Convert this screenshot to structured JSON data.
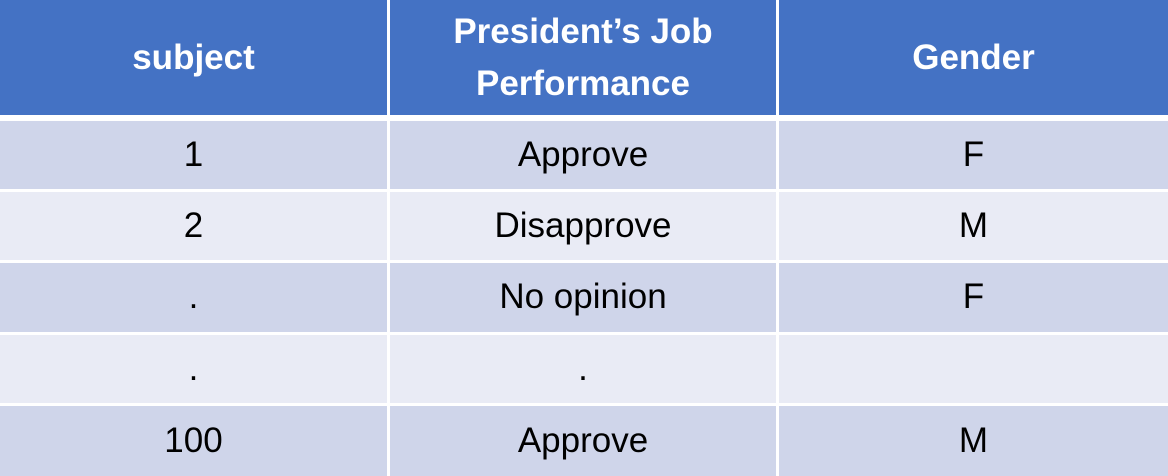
{
  "table": {
    "columns": [
      "subject",
      "President’s Job Performance",
      "Gender"
    ],
    "rows": [
      [
        "1",
        "Approve",
        "F"
      ],
      [
        "2",
        "Disapprove",
        "M"
      ],
      [
        ".",
        "No opinion",
        "F"
      ],
      [
        ".",
        ".",
        ""
      ],
      [
        "100",
        "Approve",
        "M"
      ]
    ]
  },
  "colors": {
    "header_bg": "#4472c4",
    "header_text": "#ffffff",
    "row_odd_bg": "#cfd5ea",
    "row_even_bg": "#e9ebf5"
  }
}
